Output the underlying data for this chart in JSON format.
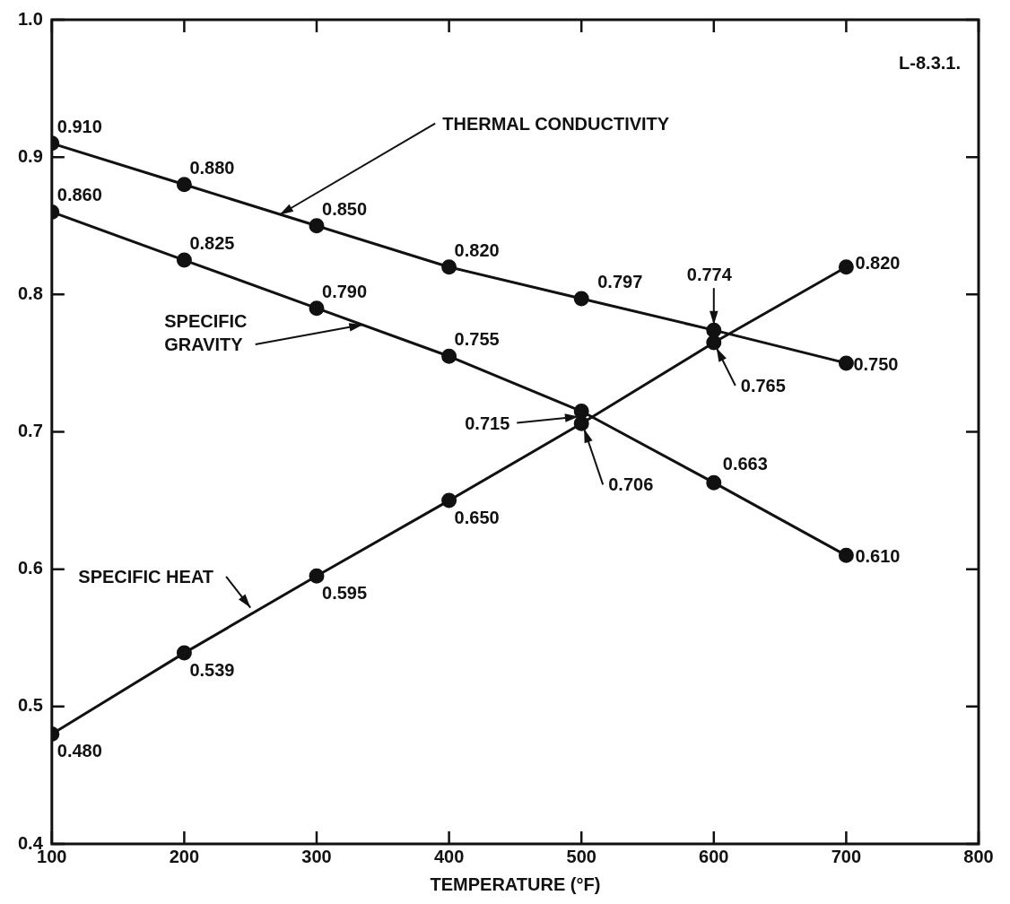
{
  "chart_data": {
    "type": "line",
    "xlabel": "TEMPERATURE (°F)",
    "x": [
      100,
      200,
      300,
      400,
      500,
      600,
      700
    ],
    "series": [
      {
        "name": "THERMAL CONDUCTIVITY",
        "color": "#111111",
        "values": [
          0.91,
          0.88,
          0.85,
          0.82,
          0.797,
          0.774,
          0.75
        ],
        "value_labels": [
          "0.910",
          "0.880",
          "0.850",
          "0.820",
          "0.797",
          "0.774",
          "0.750"
        ]
      },
      {
        "name": "SPECIFIC GRAVITY",
        "color": "#111111",
        "values": [
          0.86,
          0.825,
          0.79,
          0.755,
          0.715,
          0.663,
          0.61
        ],
        "value_labels": [
          "0.860",
          "0.825",
          "0.790",
          "0.755",
          "0.715",
          "0.663",
          "0.610"
        ]
      },
      {
        "name": "SPECIFIC HEAT",
        "color": "#111111",
        "values": [
          0.48,
          0.539,
          0.595,
          0.65,
          0.706,
          0.765,
          0.82
        ],
        "value_labels": [
          "0.480",
          "0.539",
          "0.595",
          "0.650",
          "0.706",
          "0.765",
          "0.820"
        ]
      }
    ],
    "xlim": [
      100,
      800
    ],
    "xticks": [
      100,
      200,
      300,
      400,
      500,
      600,
      700,
      800
    ],
    "ylim": [
      0.4,
      1.0
    ],
    "yticks": [
      0.4,
      0.5,
      0.6,
      0.7,
      0.8,
      0.9,
      {
        "value": 1.0,
        "label": "1.0"
      }
    ],
    "grid": false,
    "legend": false,
    "marker": "circle",
    "line_style": "solid",
    "annotations": [
      "L-8.3.1."
    ]
  }
}
